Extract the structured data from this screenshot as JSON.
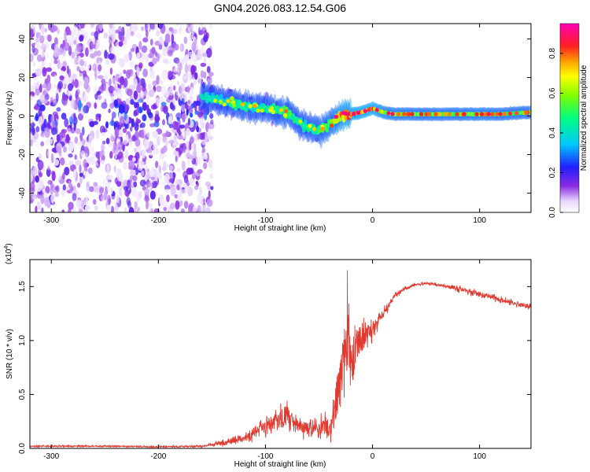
{
  "page_title": "GN04.2026.083.12.54.G06",
  "chart_data": [
    {
      "type": "heatmap",
      "title": "GN04.2026.083.12.54.G06",
      "xlabel": "Height of straight line (km)",
      "ylabel": "Frequency (Hz)",
      "xlim": [
        -320,
        148
      ],
      "ylim": [
        -50,
        48
      ],
      "x_ticks": [
        -300,
        -200,
        -100,
        0,
        100
      ],
      "x_tick_labels": [
        "-300",
        "-200",
        "-100",
        "0",
        "100"
      ],
      "y_ticks": [
        -40,
        -20,
        0,
        20,
        40
      ],
      "y_tick_labels": [
        "-40",
        "-20",
        "0",
        "20",
        "40"
      ],
      "colorbar": {
        "label": "Normalized spectral amplitude",
        "range": [
          0,
          0.95
        ],
        "ticks": [
          0.0,
          0.2,
          0.4,
          0.6,
          0.8
        ],
        "tick_labels": [
          "0.0",
          "0.2",
          "0.4",
          "0.6",
          "0.8"
        ]
      },
      "noise_region_x": [
        -320,
        -155
      ],
      "signal_trace": {
        "x": [
          -160,
          -140,
          -120,
          -100,
          -80,
          -70,
          -60,
          -50,
          -40,
          -30,
          -20,
          -10,
          0,
          10,
          20,
          50,
          80,
          100,
          120,
          148
        ],
        "y": [
          10,
          8,
          5,
          4,
          2,
          -3,
          -6,
          -8,
          -4,
          0,
          1,
          2,
          4,
          2,
          1,
          1,
          1,
          1,
          1,
          2
        ],
        "amplitude": [
          0.45,
          0.45,
          0.5,
          0.5,
          0.55,
          0.5,
          0.5,
          0.55,
          0.6,
          0.8,
          0.85,
          0.85,
          0.9,
          0.7,
          0.65,
          0.6,
          0.6,
          0.65,
          0.6,
          0.6
        ]
      }
    },
    {
      "type": "line",
      "title": "",
      "xlabel": "Height of straight line (km)",
      "ylabel": "SNR (10 * v/v)",
      "y_multiplier": "(x10",
      "y_multiplier_exp": "4",
      "y_multiplier_close": ")",
      "xlim": [
        -320,
        148
      ],
      "ylim": [
        0,
        1.75
      ],
      "x_ticks": [
        -300,
        -200,
        -100,
        0,
        100
      ],
      "x_tick_labels": [
        "-300",
        "-200",
        "-100",
        "0",
        "100"
      ],
      "y_ticks": [
        0.0,
        0.5,
        1.0,
        1.5
      ],
      "y_tick_labels": [
        "0.0",
        "0.5",
        "1.0",
        "1.5"
      ],
      "series": [
        {
          "name": "SNR",
          "color": "#e03a30",
          "x": [
            -320,
            -250,
            -200,
            -160,
            -140,
            -120,
            -100,
            -90,
            -80,
            -70,
            -60,
            -50,
            -40,
            -35,
            -30,
            -25,
            -22,
            -20,
            -15,
            -10,
            0,
            10,
            20,
            30,
            40,
            50,
            60,
            80,
            100,
            120,
            148
          ],
          "mean": [
            0.02,
            0.02,
            0.015,
            0.02,
            0.05,
            0.1,
            0.2,
            0.25,
            0.3,
            0.22,
            0.18,
            0.2,
            0.2,
            0.35,
            0.7,
            0.9,
            1.05,
            0.8,
            0.95,
            1.0,
            1.1,
            1.25,
            1.4,
            1.48,
            1.52,
            1.53,
            1.52,
            1.48,
            1.43,
            1.38,
            1.31
          ],
          "noise": [
            0.01,
            0.01,
            0.01,
            0.01,
            0.03,
            0.06,
            0.1,
            0.12,
            0.15,
            0.1,
            0.1,
            0.12,
            0.15,
            0.25,
            0.4,
            0.45,
            0.5,
            0.35,
            0.25,
            0.2,
            0.1,
            0.06,
            0.03,
            0.02,
            0.015,
            0.015,
            0.02,
            0.03,
            0.04,
            0.035,
            0.03
          ]
        }
      ]
    }
  ]
}
